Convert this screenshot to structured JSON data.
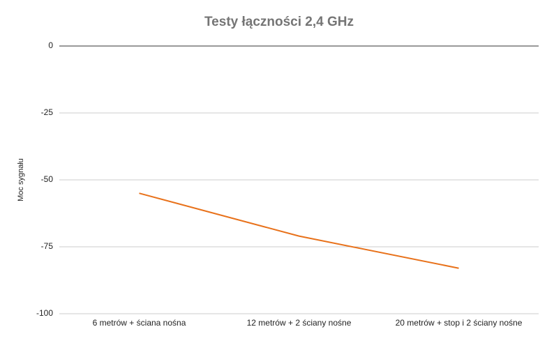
{
  "chart_data": {
    "type": "line",
    "title": "Testy łączności 2,4 GHz",
    "y_label": "Moc sygnału",
    "categories": [
      "6 metrów + ściana nośna",
      "12 metrów + 2 ściany nośne",
      "20 metrów + stop i 2 ściany nośne"
    ],
    "values": [
      -55,
      -71,
      -83
    ],
    "color": "#e8711a",
    "ylim": [
      -100,
      0
    ],
    "yticks": [
      -100,
      -75,
      -50,
      -25,
      0
    ],
    "grid": true
  }
}
